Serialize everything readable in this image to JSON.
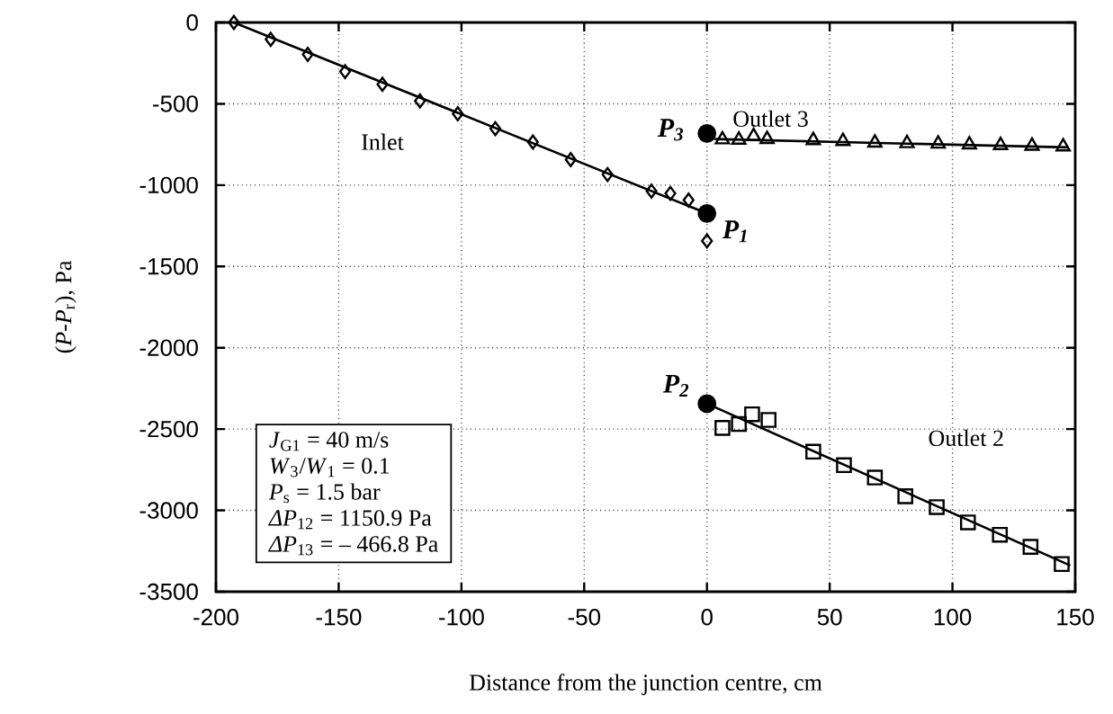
{
  "chart_data": {
    "type": "scatter",
    "xlabel": "Distance from the junction centre, cm",
    "ylabel": "(*P*-*P*$_{r}$), Pa",
    "xlim": [
      -200,
      150
    ],
    "ylim": [
      -3500,
      0
    ],
    "xticks": [
      -200,
      -150,
      -100,
      -50,
      0,
      50,
      100,
      150
    ],
    "yticks": [
      -3500,
      -3000,
      -2500,
      -2000,
      -1500,
      -1000,
      -500,
      0
    ],
    "grid": true,
    "series": [
      {
        "name": "Inlet",
        "marker": "diamond",
        "color": "#000000",
        "x": [
          -192.7,
          -177.7,
          -162.6,
          -147.4,
          -132.2,
          -116.9,
          -101.5,
          -86.2,
          -70.9,
          -55.5,
          -40.5,
          -22.6,
          -14.9,
          -7.5,
          0
        ],
        "values": [
          0,
          -104,
          -196,
          -302,
          -380,
          -482,
          -561,
          -653,
          -735,
          -843,
          -935,
          -1037,
          -1051,
          -1092,
          -1343
        ]
      },
      {
        "type": "line",
        "marker": "none",
        "color": "#000000",
        "x": [
          -192.7,
          0
        ],
        "values": [
          0,
          -1174
        ]
      },
      {
        "name": "Outlet 3",
        "marker": "triangle",
        "color": "#000000",
        "x": [
          6.3,
          13,
          19,
          24.5,
          43.3,
          55.4,
          68.4,
          81.5,
          94.2,
          106.9,
          119.6,
          132.4,
          145.1
        ],
        "values": [
          -720,
          -722,
          -700,
          -718,
          -725,
          -730,
          -740,
          -743,
          -746,
          -751,
          -755,
          -759,
          -763
        ]
      },
      {
        "type": "line",
        "marker": "none",
        "color": "#000000",
        "x": [
          3,
          147
        ],
        "values": [
          -717,
          -768
        ]
      },
      {
        "name": "Outlet 2",
        "marker": "square",
        "color": "#000000",
        "x": [
          6.3,
          13,
          18.4,
          25.1,
          43.3,
          55.8,
          68.4,
          80.8,
          93.6,
          106.3,
          119.3,
          131.8,
          144.5
        ],
        "values": [
          -2493,
          -2469,
          -2409,
          -2444,
          -2639,
          -2722,
          -2798,
          -2913,
          -2980,
          -3074,
          -3150,
          -3224,
          -3330
        ]
      },
      {
        "type": "line",
        "marker": "none",
        "color": "#000000",
        "x": [
          0,
          148
        ],
        "values": [
          -2344,
          -3339
        ]
      },
      {
        "name": "P$_{3}$",
        "marker": "circle",
        "color": "#000000",
        "x": [
          0
        ],
        "values": [
          -682
        ]
      },
      {
        "name": "P$_{1}$",
        "marker": "circle",
        "color": "#000000",
        "x": [
          0
        ],
        "values": [
          -1174
        ]
      },
      {
        "name": "P$_{2}$",
        "marker": "circle",
        "color": "#000000",
        "x": [
          0
        ],
        "values": [
          -2344
        ]
      }
    ],
    "annotations": [
      "*J*$_{G1}$ = 40 m/s",
      "*W*$_{3}$/*W*$_{1}$ = 0.1",
      "*P*$_{s}$ = 1.5 bar",
      "*ΔP*$_{12}$ = 1150.9 Pa",
      "*ΔP*$_{13}$ = – 466.8 Pa"
    ]
  }
}
